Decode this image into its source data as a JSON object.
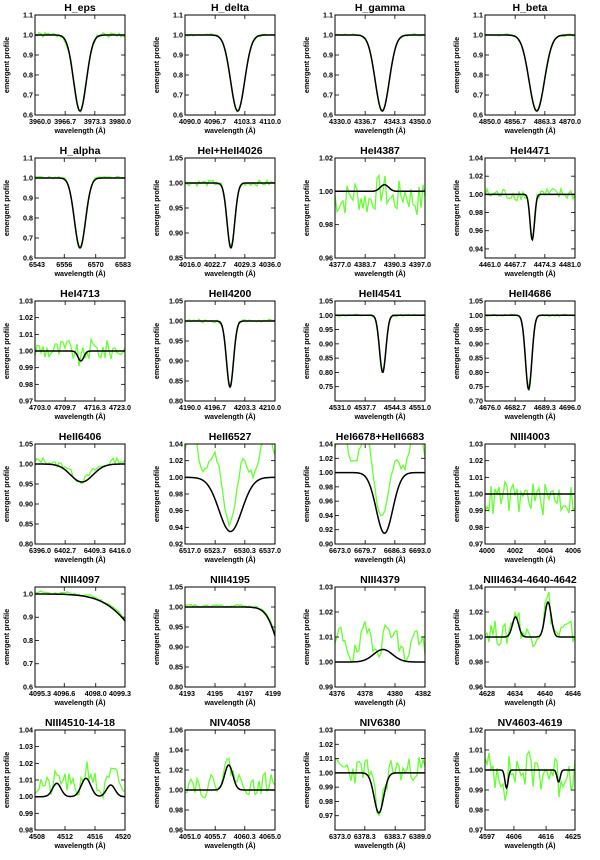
{
  "colors": {
    "observed": "#66ff33",
    "model": "#000000",
    "axis": "#000000",
    "background": "#ffffff"
  },
  "chart_data": [
    {
      "type": "line",
      "title": "H_eps",
      "xlabel": "wavelength (Å)",
      "ylabel": "emergent profile",
      "xlim": [
        3960,
        3980
      ],
      "ylim": [
        0.6,
        1.1
      ],
      "xticks": [
        "3960.0",
        "3966.7",
        "3973.3",
        "3980.0"
      ],
      "yticks": [
        "0.6",
        "0.7",
        "0.8",
        "0.9",
        "1.0",
        "1.1"
      ],
      "center": 3970,
      "depth": 0.38,
      "width": 2.0,
      "scale": 0.01,
      "noise": 1.6,
      "seed": 1,
      "obs_offset": 0
    },
    {
      "type": "line",
      "title": "H_delta",
      "xlabel": "wavelength (Å)",
      "ylabel": "emergent profile",
      "xlim": [
        4090,
        4110
      ],
      "ylim": [
        0.6,
        1.1
      ],
      "xticks": [
        "4090.0",
        "4096.7",
        "4103.3",
        "4110.0"
      ],
      "yticks": [
        "0.6",
        "0.7",
        "0.8",
        "0.9",
        "1.0",
        "1.1"
      ],
      "center": 4101.7,
      "depth": 0.38,
      "width": 2.2,
      "scale": 0.01,
      "noise": 0.8,
      "seed": 2,
      "obs_offset": 0
    },
    {
      "type": "line",
      "title": "H_gamma",
      "xlabel": "wavelength (Å)",
      "ylabel": "emergent profile",
      "xlim": [
        4330,
        4350
      ],
      "ylim": [
        0.6,
        1.1
      ],
      "xticks": [
        "4330.0",
        "4336.7",
        "4343.3",
        "4350.0"
      ],
      "yticks": [
        "0.6",
        "0.7",
        "0.8",
        "0.9",
        "1.0",
        "1.1"
      ],
      "center": 4340.5,
      "depth": 0.38,
      "width": 2.2,
      "scale": 0.01,
      "noise": 0.6,
      "seed": 3,
      "obs_offset": 0
    },
    {
      "type": "line",
      "title": "H_beta",
      "xlabel": "wavelength (Å)",
      "ylabel": "emergent profile",
      "xlim": [
        4850,
        4870
      ],
      "ylim": [
        0.6,
        1.1
      ],
      "xticks": [
        "4850.0",
        "4856.7",
        "4863.3",
        "4870.0"
      ],
      "yticks": [
        "0.6",
        "0.7",
        "0.8",
        "0.9",
        "1.0",
        "1.1"
      ],
      "center": 4861.5,
      "depth": 0.38,
      "width": 2.4,
      "scale": 0.01,
      "noise": 0.8,
      "seed": 4,
      "obs_offset": 0
    },
    {
      "type": "line",
      "title": "H_alpha",
      "xlabel": "wavelength (Å)",
      "ylabel": "emergent profile",
      "xlim": [
        6543,
        6583
      ],
      "ylim": [
        0.6,
        1.1
      ],
      "xticks": [
        "6543",
        "6556",
        "6570",
        "6583"
      ],
      "yticks": [
        "0.6",
        "0.7",
        "0.8",
        "0.9",
        "1.0",
        "1.1"
      ],
      "center": 6563,
      "depth": 0.35,
      "width": 3.5,
      "scale": 0.01,
      "noise": 0.7,
      "seed": 5,
      "obs_offset": 0.005
    },
    {
      "type": "line",
      "title": "HeI+HeII4026",
      "xlabel": "wavelength (Å)",
      "ylabel": "emergent profile",
      "xlim": [
        4016,
        4036
      ],
      "ylim": [
        0.85,
        1.05
      ],
      "xticks": [
        "4016.0",
        "4022.7",
        "4029.3",
        "4036.0"
      ],
      "yticks": [
        "0.85",
        "0.90",
        "0.95",
        "1.00",
        "1.05"
      ],
      "center": 4026.2,
      "depth": 0.13,
      "width": 1.2,
      "scale": 0.006,
      "noise": 1.2,
      "seed": 6,
      "obs_offset": 0
    },
    {
      "type": "line",
      "title": "HeI4387",
      "xlabel": "wavelength (Å)",
      "ylabel": "emergent profile",
      "xlim": [
        4377,
        4397
      ],
      "ylim": [
        0.96,
        1.02
      ],
      "xticks": [
        "4377.0",
        "4383.7",
        "4390.3",
        "4397.0"
      ],
      "yticks": [
        "0.96",
        "0.98",
        "1.00",
        "1.02"
      ],
      "center": 4388,
      "depth": -0.004,
      "width": 1.3,
      "scale": 0.012,
      "noise": 1.0,
      "seed": 7,
      "obs_offset": -0.006
    },
    {
      "type": "line",
      "title": "HeI4471",
      "xlabel": "wavelength (Å)",
      "ylabel": "emergent profile",
      "xlim": [
        4461,
        4481
      ],
      "ylim": [
        0.93,
        1.04
      ],
      "xticks": [
        "4461.0",
        "4467.7",
        "4474.3",
        "4481.0"
      ],
      "yticks": [
        "0.94",
        "0.96",
        "0.98",
        "1.00",
        "1.02",
        "1.04"
      ],
      "center": 4471.5,
      "depth": 0.05,
      "width": 0.7,
      "scale": 0.009,
      "noise": 1.0,
      "seed": 8,
      "obs_offset": 0
    },
    {
      "type": "line",
      "title": "HeI4713",
      "xlabel": "wavelength (Å)",
      "ylabel": "emergent profile",
      "xlim": [
        4703,
        4723
      ],
      "ylim": [
        0.97,
        1.03
      ],
      "xticks": [
        "4703.0",
        "4709.7",
        "4716.3",
        "4723.0"
      ],
      "yticks": [
        "0.97",
        "0.98",
        "0.99",
        "1.00",
        "1.01",
        "1.02",
        "1.03"
      ],
      "center": 4713.2,
      "depth": 0.006,
      "width": 0.9,
      "scale": 0.008,
      "noise": 1.0,
      "seed": 9,
      "obs_offset": 0.001
    },
    {
      "type": "line",
      "title": "HeII4200",
      "xlabel": "wavelength (Å)",
      "ylabel": "emergent profile",
      "xlim": [
        4190,
        4210
      ],
      "ylim": [
        0.8,
        1.05
      ],
      "xticks": [
        "4190.0",
        "4196.7",
        "4203.3",
        "4210.0"
      ],
      "yticks": [
        "0.80",
        "0.85",
        "0.90",
        "0.95",
        "1.00",
        "1.05"
      ],
      "center": 4200,
      "depth": 0.165,
      "width": 1.1,
      "scale": 0.006,
      "noise": 0.9,
      "seed": 10,
      "obs_offset": 0
    },
    {
      "type": "line",
      "title": "HeII4541",
      "xlabel": "wavelength (Å)",
      "ylabel": "emergent profile",
      "xlim": [
        4531,
        4551
      ],
      "ylim": [
        0.7,
        1.05
      ],
      "xticks": [
        "4531.0",
        "4537.7",
        "4544.3",
        "4551.0"
      ],
      "yticks": [
        "0.75",
        "0.80",
        "0.85",
        "0.90",
        "0.95",
        "1.00",
        "1.05"
      ],
      "center": 4541.6,
      "depth": 0.2,
      "width": 1.0,
      "scale": 0.006,
      "noise": 0.8,
      "seed": 11,
      "obs_offset": 0
    },
    {
      "type": "line",
      "title": "HeII4686",
      "xlabel": "wavelength (Å)",
      "ylabel": "emergent profile",
      "xlim": [
        4676,
        4696
      ],
      "ylim": [
        0.7,
        1.05
      ],
      "xticks": [
        "4676.0",
        "4682.7",
        "4689.3",
        "4696.0"
      ],
      "yticks": [
        "0.70",
        "0.75",
        "0.80",
        "0.85",
        "0.90",
        "0.95",
        "1.00",
        "1.05"
      ],
      "center": 4685.7,
      "depth": 0.26,
      "width": 1.0,
      "scale": 0.006,
      "noise": 0.8,
      "seed": 12,
      "obs_offset": 0
    },
    {
      "type": "line",
      "title": "HeII6406",
      "xlabel": "wavelength (Å)",
      "ylabel": "emergent profile",
      "xlim": [
        6396,
        6416
      ],
      "ylim": [
        0.8,
        1.05
      ],
      "xticks": [
        "6396.0",
        "6402.7",
        "6409.3",
        "6416.0"
      ],
      "yticks": [
        "0.80",
        "0.85",
        "0.90",
        "0.95",
        "1.00",
        "1.05"
      ],
      "center": 6406.4,
      "depth": 0.045,
      "width": 3.5,
      "scale": 0.01,
      "noise": 0.9,
      "seed": 13,
      "obs_offset": 0.01
    },
    {
      "type": "line",
      "title": "HeII6527",
      "xlabel": "wavelength (Å)",
      "ylabel": "emergent profile",
      "xlim": [
        6517,
        6537
      ],
      "ylim": [
        0.92,
        1.04
      ],
      "xticks": [
        "6517.0",
        "6523.7",
        "6530.3",
        "6537.0"
      ],
      "yticks": [
        "0.92",
        "0.94",
        "0.96",
        "0.98",
        "1.00",
        "1.02",
        "1.04"
      ],
      "center": 6527.1,
      "depth": 0.065,
      "width": 3.6,
      "scale": 0.008,
      "noise": 0.8,
      "seed": 14,
      "obs_offset": 0.055
    },
    {
      "type": "line",
      "title": "HeI6678+HeII6683",
      "xlabel": "wavelength (Å)",
      "ylabel": "emergent profile",
      "xlim": [
        6673,
        6693
      ],
      "ylim": [
        0.9,
        1.04
      ],
      "xticks": [
        "6673.0",
        "6679.7",
        "6686.3",
        "6693.0"
      ],
      "yticks": [
        "0.90",
        "0.92",
        "0.94",
        "0.96",
        "0.98",
        "1.00",
        "1.02",
        "1.04"
      ],
      "center": 6684,
      "depth": 0.085,
      "width": 2.6,
      "scale": 0.007,
      "noise": 0.8,
      "seed": 15,
      "obs_offset": 0.06
    },
    {
      "type": "line",
      "title": "NIII4003",
      "xlabel": "wavelength (Å)",
      "ylabel": "emergent profile",
      "xlim": [
        4000,
        4006
      ],
      "ylim": [
        0.97,
        1.03
      ],
      "xticks": [
        "4000",
        "4002",
        "4004",
        "4006"
      ],
      "yticks": [
        "0.97",
        "0.98",
        "0.99",
        "1.00",
        "1.01",
        "1.02",
        "1.03"
      ],
      "center": 4003,
      "depth": 0,
      "width": 0.5,
      "scale": 0.012,
      "noise": 1.0,
      "seed": 16,
      "obs_offset": -0.004
    },
    {
      "type": "line",
      "title": "NIII4097",
      "xlabel": "wavelength (Å)",
      "ylabel": "emergent profile",
      "xlim": [
        4095.3,
        4099.3
      ],
      "ylim": [
        0.6,
        1.03
      ],
      "xticks": [
        "4095.3",
        "4096.6",
        "4098.0",
        "4099.3"
      ],
      "yticks": [
        "0.6",
        "0.7",
        "0.8",
        "0.9",
        "1.0"
      ],
      "center": 4101.7,
      "depth": 0.38,
      "width": 2.2,
      "scale": 0.006,
      "noise": 0.8,
      "seed": 17,
      "obs_offset": 0.01
    },
    {
      "type": "line",
      "title": "NIII4195",
      "xlabel": "wavelength (Å)",
      "ylabel": "emergent profile",
      "xlim": [
        4193,
        4199
      ],
      "ylim": [
        0.8,
        1.05
      ],
      "xticks": [
        "4193",
        "4195",
        "4197",
        "4199"
      ],
      "yticks": [
        "0.80",
        "0.85",
        "0.90",
        "0.95",
        "1.00",
        "1.05"
      ],
      "center": 4200,
      "depth": 0.165,
      "width": 1.1,
      "scale": 0.005,
      "noise": 0.8,
      "seed": 18,
      "obs_offset": 0.004
    },
    {
      "type": "line",
      "title": "NIII4379",
      "xlabel": "wavelength (Å)",
      "ylabel": "emergent profile",
      "xlim": [
        4376,
        4382
      ],
      "ylim": [
        0.99,
        1.03
      ],
      "xticks": [
        "4376",
        "4378",
        "4380",
        "4382"
      ],
      "yticks": [
        "0.99",
        "1.00",
        "1.01",
        "1.02",
        "1.03"
      ],
      "center": 4379.2,
      "depth": -0.005,
      "width": 0.9,
      "scale": 0.006,
      "noise": 1.0,
      "seed": 19,
      "obs_offset": 0.011
    },
    {
      "type": "line",
      "title": "NIII4634-4640-4642",
      "xlabel": "wavelength (Å)",
      "ylabel": "emergent profile",
      "xlim": [
        4628,
        4646
      ],
      "ylim": [
        0.96,
        1.04
      ],
      "xticks": [
        "4628",
        "4634",
        "4640",
        "4646"
      ],
      "yticks": [
        "0.96",
        "0.98",
        "1.00",
        "1.02",
        "1.04"
      ],
      "center": 4640.6,
      "depth": -0.028,
      "width": 0.9,
      "extra": [
        [
          4634.1,
          -0.016,
          0.9
        ]
      ],
      "scale": 0.012,
      "noise": 1.0,
      "seed": 20,
      "obs_offset": 0.005
    },
    {
      "type": "line",
      "title": "NIII4510-14-18",
      "xlabel": "wavelength (Å)",
      "ylabel": "emergent profile",
      "xlim": [
        4508,
        4520
      ],
      "ylim": [
        0.98,
        1.04
      ],
      "xticks": [
        "4508",
        "4512",
        "4516",
        "4520"
      ],
      "yticks": [
        "0.98",
        "0.99",
        "1.00",
        "1.01",
        "1.02",
        "1.03",
        "1.04"
      ],
      "center": 4514.8,
      "depth": -0.011,
      "width": 0.9,
      "extra": [
        [
          4510.9,
          -0.008,
          0.8
        ],
        [
          4518.1,
          -0.007,
          0.8
        ]
      ],
      "scale": 0.008,
      "noise": 1.0,
      "seed": 21,
      "obs_offset": 0.008
    },
    {
      "type": "line",
      "title": "NIV4058",
      "xlabel": "wavelength (Å)",
      "ylabel": "emergent profile",
      "xlim": [
        4051,
        4065
      ],
      "ylim": [
        0.96,
        1.06
      ],
      "xticks": [
        "4051.0",
        "4055.7",
        "4060.3",
        "4065.0"
      ],
      "yticks": [
        "0.96",
        "0.98",
        "1.00",
        "1.02",
        "1.04",
        "1.06"
      ],
      "center": 4057.8,
      "depth": -0.025,
      "width": 0.9,
      "scale": 0.012,
      "noise": 1.0,
      "seed": 22,
      "obs_offset": 0.008
    },
    {
      "type": "line",
      "title": "NIV6380",
      "xlabel": "wavelength (Å)",
      "ylabel": "emergent profile",
      "xlim": [
        6373,
        6389
      ],
      "ylim": [
        0.96,
        1.03
      ],
      "xticks": [
        "6373.0",
        "6378.3",
        "6383.7",
        "6389.0"
      ],
      "yticks": [
        "0.97",
        "0.98",
        "0.99",
        "1.00",
        "1.01",
        "1.02",
        "1.03"
      ],
      "center": 6380.8,
      "depth": 0.028,
      "width": 1.2,
      "scale": 0.011,
      "noise": 1.0,
      "seed": 23,
      "obs_offset": 0.004
    },
    {
      "type": "line",
      "title": "NV4603-4619",
      "xlabel": "wavelength (Å)",
      "ylabel": "emergent profile",
      "xlim": [
        4597,
        4625
      ],
      "ylim": [
        0.97,
        1.02
      ],
      "xticks": [
        "4597",
        "4606",
        "4616",
        "4625"
      ],
      "yticks": [
        "0.97",
        "0.98",
        "0.99",
        "1.00",
        "1.01",
        "1.02"
      ],
      "center": 4603.7,
      "depth": 0.009,
      "width": 0.7,
      "extra": [
        [
          4619.9,
          0.006,
          0.7
        ]
      ],
      "scale": 0.011,
      "noise": 1.2,
      "seed": 24,
      "obs_offset": 0
    }
  ]
}
